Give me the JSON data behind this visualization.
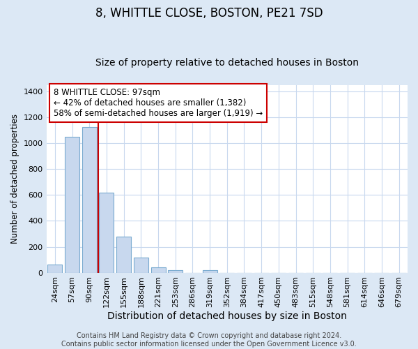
{
  "title": "8, WHITTLE CLOSE, BOSTON, PE21 7SD",
  "subtitle": "Size of property relative to detached houses in Boston",
  "xlabel": "Distribution of detached houses by size in Boston",
  "ylabel": "Number of detached properties",
  "bin_labels": [
    "24sqm",
    "57sqm",
    "90sqm",
    "122sqm",
    "155sqm",
    "188sqm",
    "221sqm",
    "253sqm",
    "286sqm",
    "319sqm",
    "352sqm",
    "384sqm",
    "417sqm",
    "450sqm",
    "483sqm",
    "515sqm",
    "548sqm",
    "581sqm",
    "614sqm",
    "646sqm",
    "679sqm"
  ],
  "bar_values": [
    65,
    1047,
    1127,
    620,
    278,
    118,
    42,
    18,
    0,
    20,
    0,
    0,
    0,
    0,
    0,
    0,
    0,
    0,
    0,
    0,
    0
  ],
  "bar_color": "#c8d8ee",
  "bar_edgecolor": "#7aabd0",
  "bar_linewidth": 0.8,
  "vline_color": "#cc0000",
  "vline_linewidth": 1.5,
  "annotation_text": "8 WHITTLE CLOSE: 97sqm\n← 42% of detached houses are smaller (1,382)\n58% of semi-detached houses are larger (1,919) →",
  "annotation_box_edgecolor": "#cc0000",
  "annotation_box_facecolor": "#ffffff",
  "annotation_fontsize": 8.5,
  "ylim": [
    0,
    1450
  ],
  "yticks": [
    0,
    200,
    400,
    600,
    800,
    1000,
    1200,
    1400
  ],
  "footer_text": "Contains HM Land Registry data © Crown copyright and database right 2024.\nContains public sector information licensed under the Open Government Licence v3.0.",
  "figure_background_color": "#dce8f5",
  "plot_background_color": "#ffffff",
  "grid_color": "#c8d8ee",
  "title_fontsize": 12,
  "subtitle_fontsize": 10,
  "xlabel_fontsize": 10,
  "ylabel_fontsize": 8.5,
  "footer_fontsize": 7,
  "tick_fontsize": 8
}
